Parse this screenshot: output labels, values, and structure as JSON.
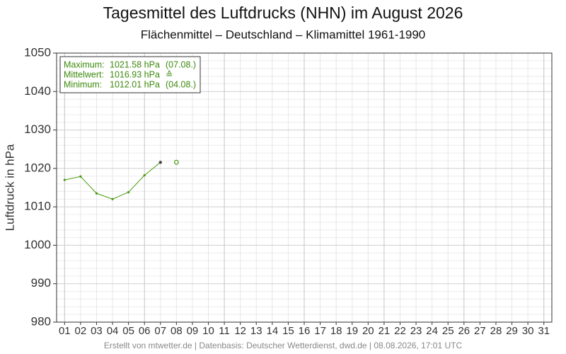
{
  "chart_data": {
    "type": "line",
    "title": "Tagesmittel des Luftdrucks (NHN) im August 2026",
    "subtitle": "Flächenmittel – Deutschland – Klimamittel 1961-1990",
    "y_label": "Luftdruck in hPa",
    "footer": "Erstellt von mtwetter.de | Datenbasis: Deutscher Wetterdienst, dwd.de | 08.08.2026, 17:01 UTC",
    "stats": [
      [
        "Maximum:",
        "1021.58 hPa",
        "(07.08.)"
      ],
      [
        "Mittelwert:",
        "1016.93 hPa",
        "≙"
      ],
      [
        "Minimum:",
        "1012.01 hPa",
        "(04.08.)"
      ]
    ],
    "categories": [
      "01",
      "02",
      "03",
      "04",
      "05",
      "06",
      "07",
      "08",
      "09",
      "10",
      "11",
      "12",
      "13",
      "14",
      "15",
      "16",
      "17",
      "18",
      "19",
      "20",
      "21",
      "22",
      "23",
      "24",
      "25",
      "26",
      "27",
      "28",
      "29",
      "30",
      "31"
    ],
    "series": [
      {
        "color": "#4a9a12",
        "values": [
          1017.0,
          1017.9,
          1013.5,
          1012.01,
          1013.8,
          1018.2,
          1021.58,
          null,
          null,
          null,
          null,
          null,
          null,
          null,
          null,
          null,
          null,
          null,
          null,
          null,
          null,
          null,
          null,
          null,
          null,
          null,
          null,
          null,
          null,
          null,
          null
        ]
      },
      {
        "color": "#4a9a12",
        "values": [
          null,
          null,
          null,
          null,
          null,
          null,
          null,
          1021.6,
          null,
          null,
          null,
          null,
          null,
          null,
          null,
          null,
          null,
          null,
          null,
          null,
          null,
          null,
          null,
          null,
          null,
          null,
          null,
          null,
          null,
          null,
          null
        ]
      }
    ],
    "ylim": [
      980,
      1050
    ],
    "yticks": [
      980,
      990,
      1000,
      1010,
      1020,
      1030,
      1040,
      1050
    ],
    "grid": true
  }
}
